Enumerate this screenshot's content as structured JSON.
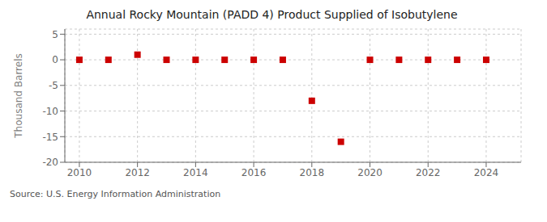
{
  "chart_data": {
    "type": "scatter",
    "title": "Annual Rocky Mountain (PADD 4) Product Supplied of Isobutylene",
    "y_label": "Thousand Barrels",
    "annotation": "Source: U.S. Energy Information Administration",
    "x": [
      2010,
      2011,
      2012,
      2013,
      2014,
      2015,
      2016,
      2017,
      2018,
      2019,
      2020,
      2021,
      2022,
      2023,
      2024
    ],
    "values": [
      0,
      0,
      1,
      0,
      0,
      0,
      0,
      0,
      -8,
      -16,
      0,
      0,
      0,
      0,
      0
    ],
    "color": "#cc0000",
    "marker": "square",
    "xlim": [
      2009.5,
      2025.2
    ],
    "ylim": [
      -20,
      6
    ],
    "xticks": [
      2010,
      2012,
      2014,
      2016,
      2018,
      2020,
      2022,
      2024
    ],
    "yticks": [
      -20,
      -15,
      -10,
      -5,
      0,
      5
    ],
    "grid": true
  }
}
